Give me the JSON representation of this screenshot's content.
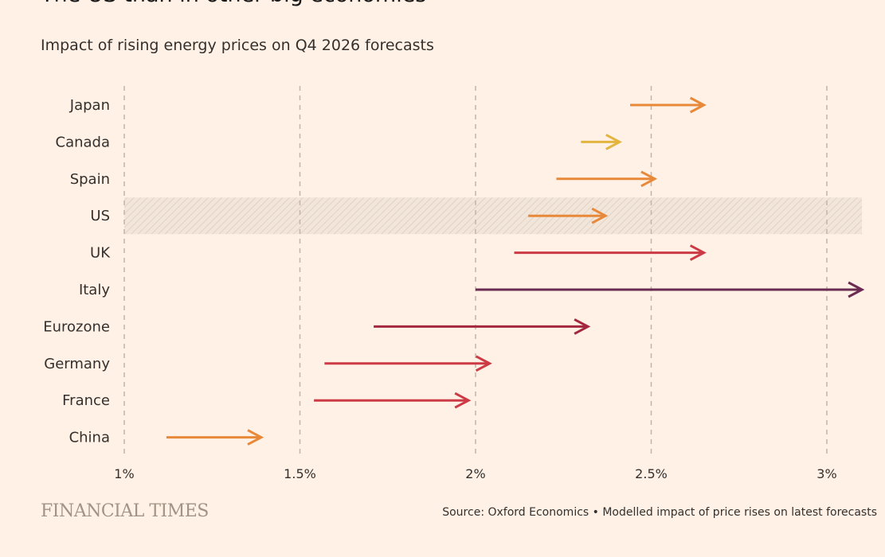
{
  "title": "The US than in other big economies",
  "subtitle": "Impact of rising energy prices on Q4 2026 forecasts",
  "logo": "FINANCIAL TIMES",
  "source": "Source: Oxford Economics • Modelled impact of price rises on latest forecasts",
  "chart_data": {
    "type": "arrow",
    "title": "The US than in other big economies",
    "subtitle": "Impact of rising energy prices on Q4 2026 forecasts",
    "xlim": [
      1,
      3.1
    ],
    "xticks": [
      1,
      1.5,
      2,
      2.5,
      3
    ],
    "xtick_labels": [
      "1%",
      "1.5%",
      "2%",
      "2.5%",
      "3%"
    ],
    "grid": "vertical dashed",
    "highlighted_category": "US",
    "categories": [
      "Japan",
      "Canada",
      "Spain",
      "US",
      "UK",
      "Italy",
      "Eurozone",
      "Germany",
      "France",
      "China"
    ],
    "series": [
      {
        "category": "Japan",
        "from": 2.44,
        "to": 2.65,
        "color": "#e8893a"
      },
      {
        "category": "Canada",
        "from": 2.3,
        "to": 2.41,
        "color": "#e3b53f"
      },
      {
        "category": "Spain",
        "from": 2.23,
        "to": 2.51,
        "color": "#e8893a"
      },
      {
        "category": "US",
        "from": 2.15,
        "to": 2.37,
        "color": "#e8893a"
      },
      {
        "category": "UK",
        "from": 2.11,
        "to": 2.65,
        "color": "#cc3a45"
      },
      {
        "category": "Italy",
        "from": 2.0,
        "to": 3.1,
        "color": "#6b2a52"
      },
      {
        "category": "Eurozone",
        "from": 1.71,
        "to": 2.32,
        "color": "#a3283f"
      },
      {
        "category": "Germany",
        "from": 1.57,
        "to": 2.04,
        "color": "#cc3a45"
      },
      {
        "category": "France",
        "from": 1.54,
        "to": 1.98,
        "color": "#cc3a45"
      },
      {
        "category": "China",
        "from": 1.12,
        "to": 1.39,
        "color": "#e8893a"
      }
    ]
  }
}
